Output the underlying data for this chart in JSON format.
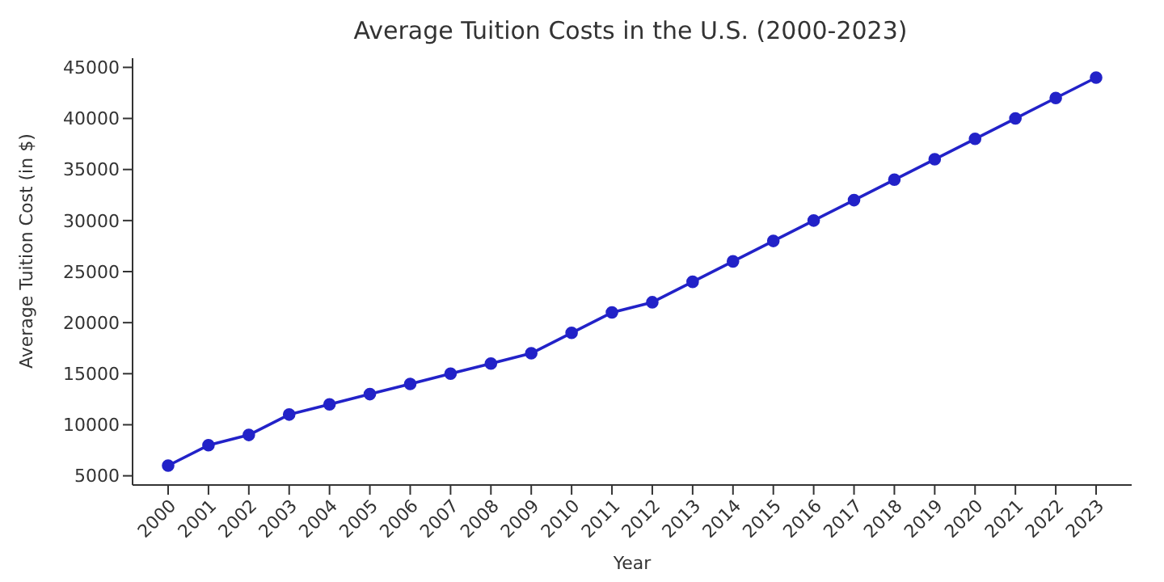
{
  "chart_data": {
    "type": "line",
    "title": "Average Tuition Costs in the U.S. (2000-2023)",
    "xlabel": "Year",
    "ylabel": "Average Tuition Cost (in $)",
    "categories": [
      "2000",
      "2001",
      "2002",
      "2003",
      "2004",
      "2005",
      "2006",
      "2007",
      "2008",
      "2009",
      "2010",
      "2011",
      "2012",
      "2013",
      "2014",
      "2015",
      "2016",
      "2017",
      "2018",
      "2019",
      "2020",
      "2021",
      "2022",
      "2023"
    ],
    "values": [
      6000,
      8000,
      9000,
      11000,
      12000,
      13000,
      14000,
      15000,
      16000,
      17000,
      19000,
      21000,
      22000,
      24000,
      26000,
      28000,
      30000,
      32000,
      34000,
      36000,
      38000,
      40000,
      42000,
      44000
    ],
    "color": "#2222c8",
    "marker": "circle",
    "line_style": "solid",
    "ylim": [
      4100,
      45900
    ],
    "yticks": [
      5000,
      10000,
      15000,
      20000,
      25000,
      30000,
      35000,
      40000,
      45000
    ]
  }
}
